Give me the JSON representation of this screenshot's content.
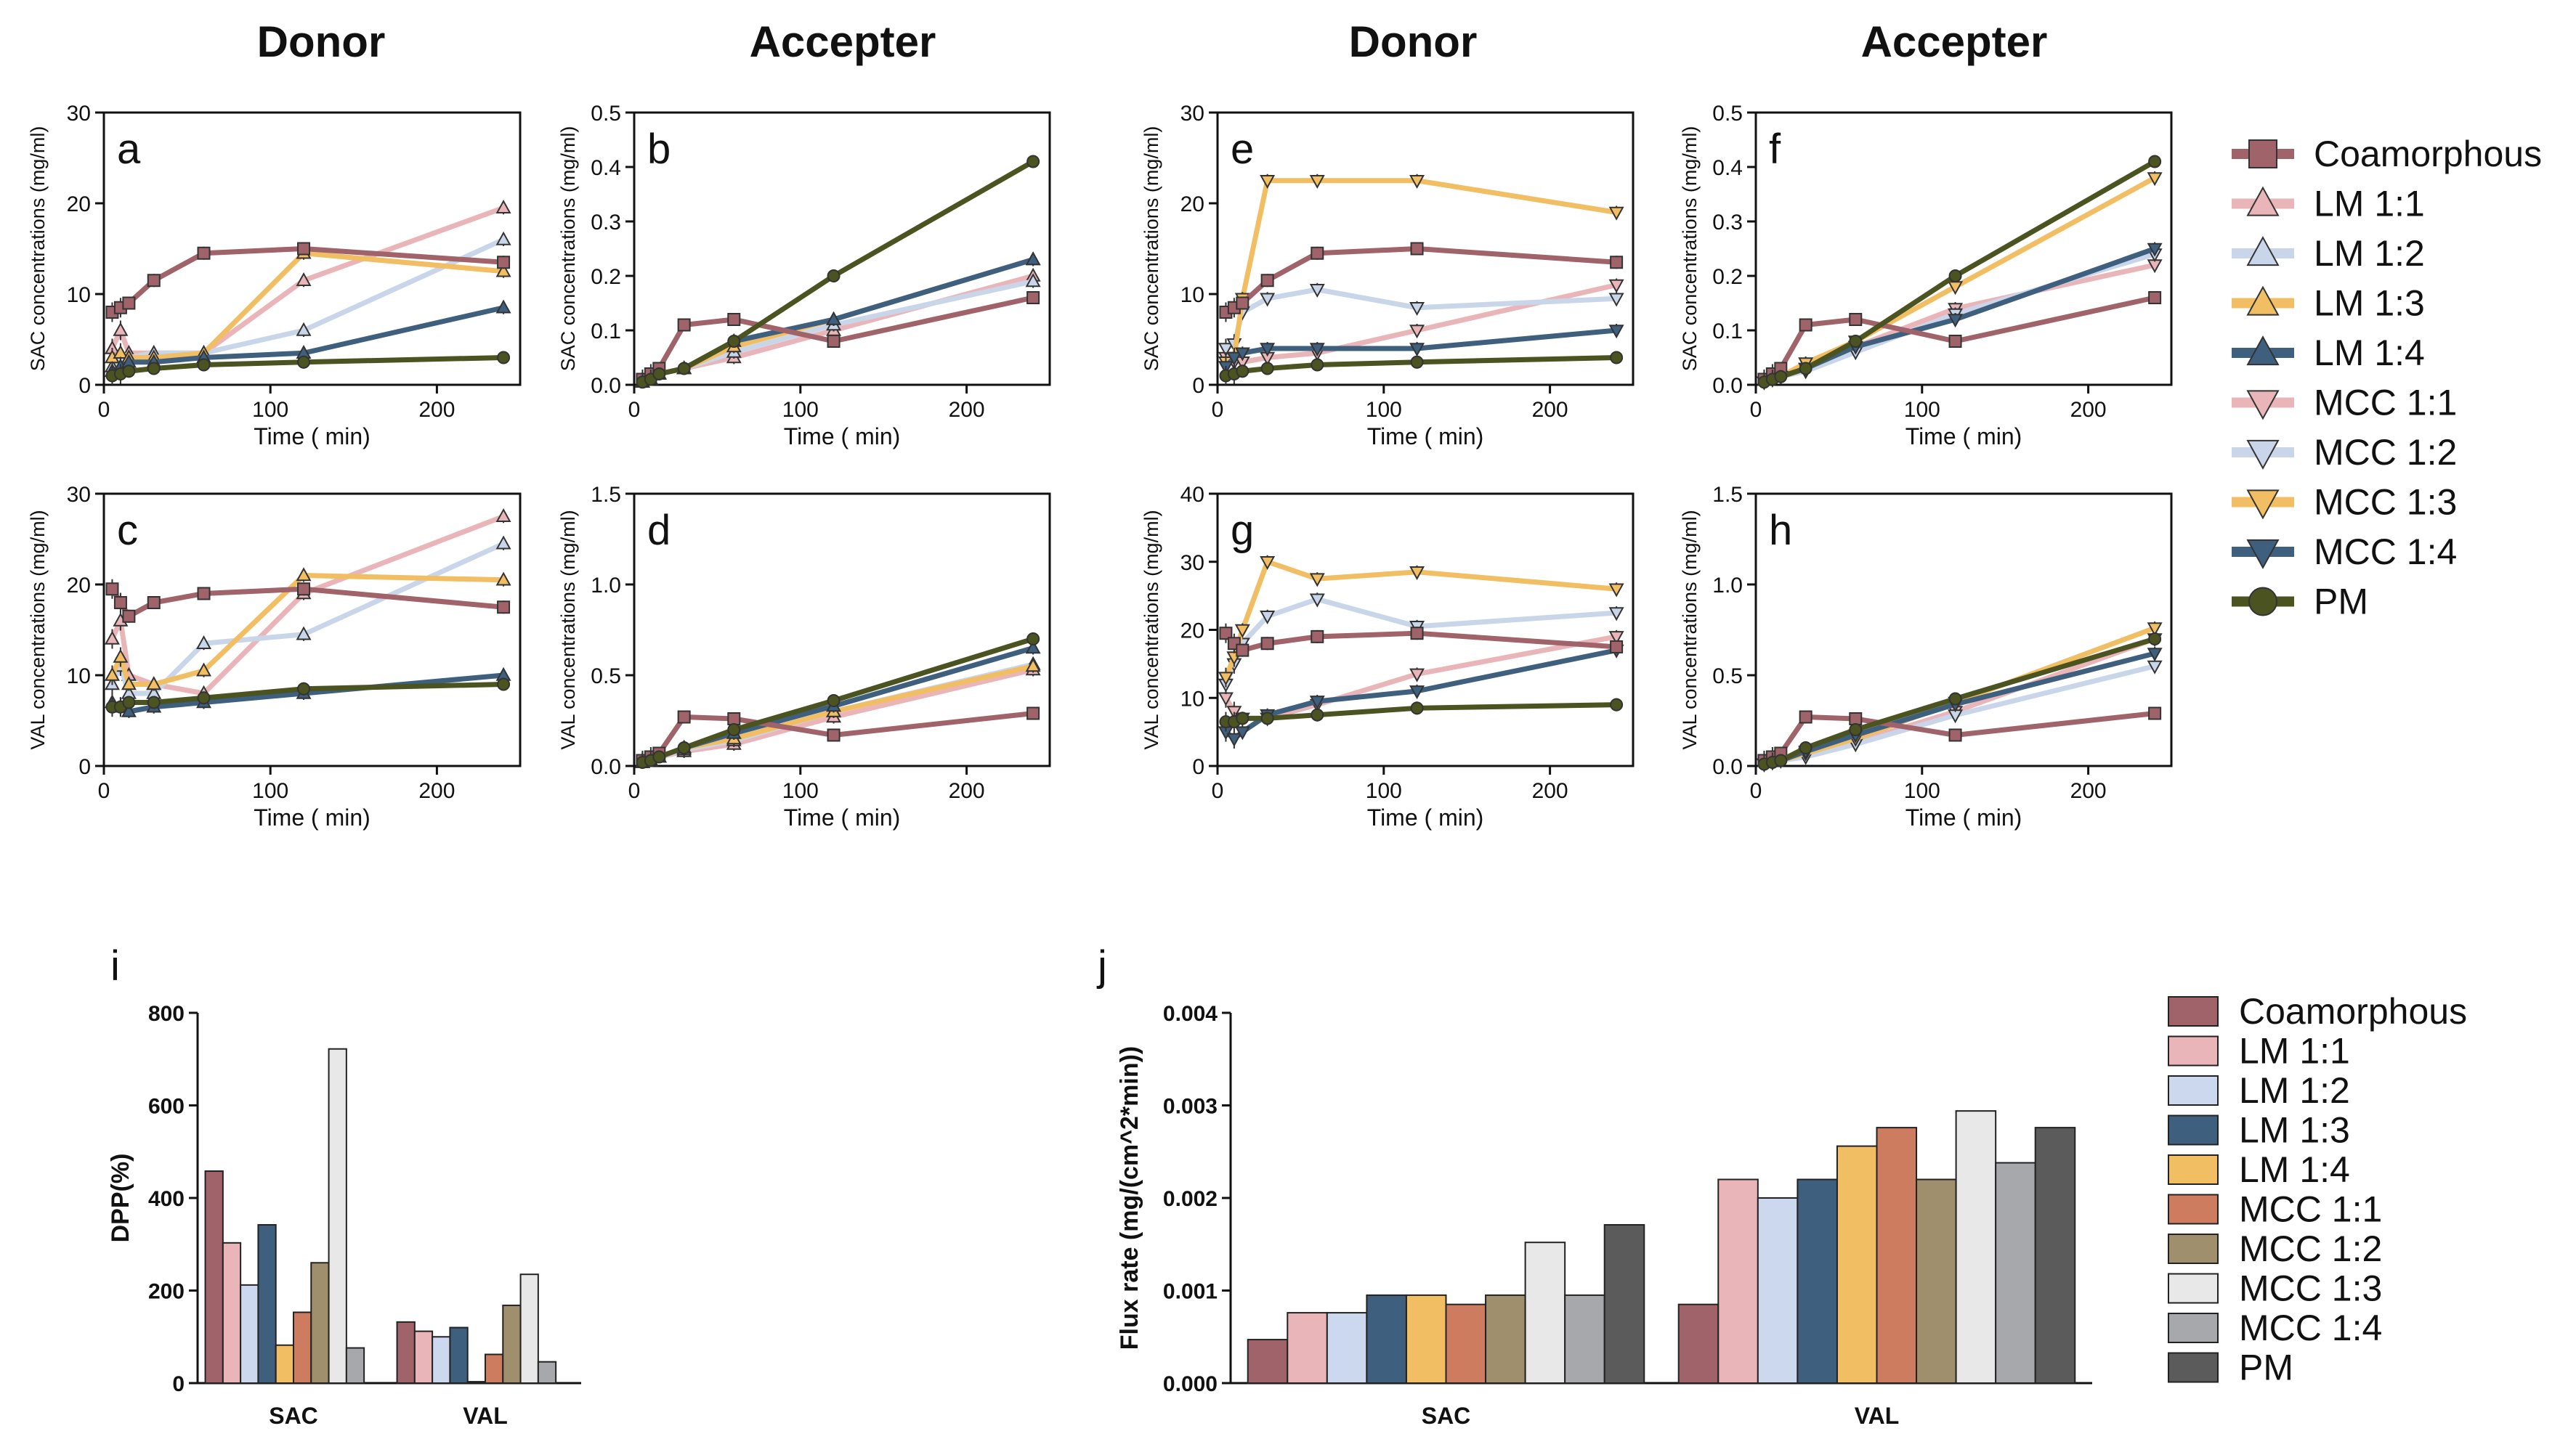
{
  "headers": {
    "donor": "Donor",
    "accepter": "Accepter"
  },
  "colors": {
    "Coamorphous": "#a0636a",
    "LM 1:1": "#eab5b8",
    "LM 1:2": "#c9d6ea",
    "LM 1:3": "#f2be63",
    "LM 1:4": "#3e5f7e",
    "MCC 1:1": "#eab5b8",
    "MCC 1:2": "#c9d6ea",
    "MCC 1:3": "#f2be63",
    "MCC 1:4": "#3e5f7e",
    "PM": "#4b5320"
  },
  "bar_colors": {
    "Coamorphous": "#a0636a",
    "LM 1:1": "#eab5b8",
    "LM 1:2": "#cbd8ee",
    "LM 1:3": "#3e5f7e",
    "LM 1:4": "#f2be63",
    "MCC 1:1": "#cd7c60",
    "MCC 1:2": "#a08f6c",
    "MCC 1:3": "#e8e8e8",
    "MCC 1:4": "#a7a8ac",
    "PM": "#5b5b5b"
  },
  "line_legend": {
    "labels": [
      "Coamorphous",
      "LM 1:1",
      "LM 1:2",
      "LM 1:3",
      "LM 1:4",
      "MCC 1:1",
      "MCC 1:2",
      "MCC 1:3",
      "MCC 1:4",
      "PM"
    ],
    "markers": [
      "square",
      "tri-up",
      "tri-up",
      "tri-up",
      "tri-up",
      "tri-down",
      "tri-down",
      "tri-down",
      "tri-down",
      "circle"
    ]
  },
  "bar_legend": {
    "labels": [
      "Coamorphous",
      "LM 1:1",
      "LM 1:2",
      "LM 1:3",
      "LM 1:4",
      "MCC 1:1",
      "MCC 1:2",
      "MCC 1:3",
      "MCC 1:4",
      "PM"
    ]
  },
  "chart_data": [
    {
      "panel": "a",
      "type": "line",
      "xlabel": "Time ( min)",
      "ylabel": "SAC concentrations (mg/ml)",
      "xlim": [
        0,
        250
      ],
      "ylim": [
        0,
        30
      ],
      "xticks": [
        0,
        100,
        200
      ],
      "yticks": [
        0,
        10,
        20,
        30
      ],
      "x": [
        5,
        10,
        15,
        30,
        60,
        120,
        240
      ],
      "series": [
        {
          "name": "Coamorphous",
          "marker": "square",
          "values": [
            8,
            8.5,
            9,
            11.5,
            14.5,
            15,
            13.5
          ]
        },
        {
          "name": "LM 1:1",
          "marker": "tri-up",
          "values": [
            4,
            6,
            3.5,
            3.5,
            3.5,
            11.5,
            19.5
          ]
        },
        {
          "name": "LM 1:2",
          "marker": "tri-up",
          "values": [
            2,
            3,
            3,
            3.5,
            3.5,
            6,
            16
          ]
        },
        {
          "name": "LM 1:3",
          "marker": "tri-up",
          "values": [
            3,
            3.5,
            3,
            3,
            3.5,
            14.5,
            12.5
          ]
        },
        {
          "name": "LM 1:4",
          "marker": "tri-up",
          "values": [
            1.5,
            2,
            2.5,
            2.5,
            3,
            3.5,
            8.5
          ]
        },
        {
          "name": "PM",
          "marker": "circle",
          "values": [
            1,
            1.2,
            1.5,
            1.8,
            2.2,
            2.5,
            3
          ]
        }
      ]
    },
    {
      "panel": "b",
      "type": "line",
      "xlabel": "Time ( min)",
      "ylabel": "SAC concentrations (mg/ml)",
      "xlim": [
        0,
        250
      ],
      "ylim": [
        0,
        0.5
      ],
      "xticks": [
        0,
        100,
        200
      ],
      "yticks": [
        0.0,
        0.1,
        0.2,
        0.3,
        0.4,
        0.5
      ],
      "x": [
        5,
        10,
        15,
        30,
        60,
        120,
        240
      ],
      "series": [
        {
          "name": "Coamorphous",
          "marker": "square",
          "values": [
            0.01,
            0.02,
            0.03,
            0.11,
            0.12,
            0.08,
            0.16
          ]
        },
        {
          "name": "LM 1:1",
          "marker": "tri-up",
          "values": [
            0.005,
            0.01,
            0.02,
            0.03,
            0.05,
            0.1,
            0.2
          ]
        },
        {
          "name": "LM 1:2",
          "marker": "tri-up",
          "values": [
            0.005,
            0.01,
            0.02,
            0.03,
            0.06,
            0.11,
            0.19
          ]
        },
        {
          "name": "LM 1:3",
          "marker": "tri-up",
          "values": [
            0.005,
            0.01,
            0.02,
            0.03,
            0.07,
            0.12,
            0.23
          ]
        },
        {
          "name": "LM 1:4",
          "marker": "tri-up",
          "values": [
            0.005,
            0.01,
            0.02,
            0.03,
            0.08,
            0.12,
            0.23
          ]
        },
        {
          "name": "PM",
          "marker": "circle",
          "values": [
            0.005,
            0.01,
            0.02,
            0.03,
            0.08,
            0.2,
            0.41
          ]
        }
      ]
    },
    {
      "panel": "c",
      "type": "line",
      "xlabel": "Time ( min)",
      "ylabel": "VAL concentrations (mg/ml)",
      "xlim": [
        0,
        250
      ],
      "ylim": [
        0,
        30
      ],
      "xticks": [
        0,
        100,
        200
      ],
      "yticks": [
        0,
        10,
        20,
        30
      ],
      "x": [
        5,
        10,
        15,
        30,
        60,
        120,
        240
      ],
      "series": [
        {
          "name": "Coamorphous",
          "marker": "square",
          "values": [
            19.5,
            18,
            16.5,
            18,
            19,
            19.5,
            17.5
          ]
        },
        {
          "name": "LM 1:1",
          "marker": "tri-up",
          "values": [
            14,
            16,
            10,
            9,
            8,
            19,
            27.5
          ]
        },
        {
          "name": "LM 1:2",
          "marker": "tri-up",
          "values": [
            9,
            11,
            8,
            8,
            13.5,
            14.5,
            24.5
          ]
        },
        {
          "name": "LM 1:3",
          "marker": "tri-up",
          "values": [
            10,
            12,
            9,
            9,
            10.5,
            21,
            20.5
          ]
        },
        {
          "name": "LM 1:4",
          "marker": "tri-up",
          "values": [
            7,
            6.5,
            6,
            6.5,
            7,
            8,
            10
          ]
        },
        {
          "name": "PM",
          "marker": "circle",
          "values": [
            6.5,
            6.5,
            7,
            7,
            7.5,
            8.5,
            9
          ]
        }
      ]
    },
    {
      "panel": "d",
      "type": "line",
      "xlabel": "Time ( min)",
      "ylabel": "VAL concentrations (mg/ml)",
      "xlim": [
        0,
        250
      ],
      "ylim": [
        0,
        1.5
      ],
      "xticks": [
        0,
        100,
        200
      ],
      "yticks": [
        0.0,
        0.5,
        1.0,
        1.5
      ],
      "x": [
        5,
        10,
        15,
        30,
        60,
        120,
        240
      ],
      "series": [
        {
          "name": "Coamorphous",
          "marker": "square",
          "values": [
            0.03,
            0.05,
            0.07,
            0.27,
            0.26,
            0.17,
            0.29
          ]
        },
        {
          "name": "LM 1:1",
          "marker": "tri-up",
          "values": [
            0.02,
            0.03,
            0.05,
            0.08,
            0.12,
            0.27,
            0.53
          ]
        },
        {
          "name": "LM 1:2",
          "marker": "tri-up",
          "values": [
            0.02,
            0.03,
            0.05,
            0.09,
            0.14,
            0.3,
            0.56
          ]
        },
        {
          "name": "LM 1:3",
          "marker": "tri-up",
          "values": [
            0.02,
            0.03,
            0.05,
            0.1,
            0.15,
            0.3,
            0.55
          ]
        },
        {
          "name": "LM 1:4",
          "marker": "tri-up",
          "values": [
            0.02,
            0.03,
            0.05,
            0.1,
            0.18,
            0.33,
            0.65
          ]
        },
        {
          "name": "PM",
          "marker": "circle",
          "values": [
            0.02,
            0.03,
            0.05,
            0.1,
            0.2,
            0.36,
            0.7
          ]
        }
      ]
    },
    {
      "panel": "e",
      "type": "line",
      "xlabel": "Time ( min)",
      "ylabel": "SAC concentrations (mg/ml)",
      "xlim": [
        0,
        250
      ],
      "ylim": [
        0,
        30
      ],
      "xticks": [
        0,
        100,
        200
      ],
      "yticks": [
        0,
        10,
        20,
        30
      ],
      "x": [
        5,
        10,
        15,
        30,
        60,
        120,
        240
      ],
      "series": [
        {
          "name": "Coamorphous",
          "marker": "square",
          "values": [
            8,
            8.5,
            9,
            11.5,
            14.5,
            15,
            13.5
          ]
        },
        {
          "name": "MCC 1:1",
          "marker": "tri-down",
          "values": [
            3,
            2.5,
            2.5,
            3,
            3.5,
            6,
            11
          ]
        },
        {
          "name": "MCC 1:2",
          "marker": "tri-down",
          "values": [
            4,
            4.5,
            8,
            9.5,
            10.5,
            8.5,
            9.5
          ]
        },
        {
          "name": "MCC 1:3",
          "marker": "tri-down",
          "values": [
            2.5,
            3,
            9.5,
            22.5,
            22.5,
            22.5,
            19
          ]
        },
        {
          "name": "MCC 1:4",
          "marker": "tri-down",
          "values": [
            2,
            3,
            3.5,
            4,
            4,
            4,
            6
          ]
        },
        {
          "name": "PM",
          "marker": "circle",
          "values": [
            1,
            1.2,
            1.5,
            1.8,
            2.2,
            2.5,
            3
          ]
        }
      ]
    },
    {
      "panel": "f",
      "type": "line",
      "xlabel": "Time ( min)",
      "ylabel": "SAC concentrations (mg/ml)",
      "xlim": [
        0,
        250
      ],
      "ylim": [
        0,
        0.5
      ],
      "xticks": [
        0,
        100,
        200
      ],
      "yticks": [
        0.0,
        0.1,
        0.2,
        0.3,
        0.4,
        0.5
      ],
      "x": [
        5,
        10,
        15,
        30,
        60,
        120,
        240
      ],
      "series": [
        {
          "name": "Coamorphous",
          "marker": "square",
          "values": [
            0.01,
            0.02,
            0.03,
            0.11,
            0.12,
            0.08,
            0.16
          ]
        },
        {
          "name": "MCC 1:1",
          "marker": "tri-down",
          "values": [
            0.005,
            0.01,
            0.015,
            0.03,
            0.07,
            0.14,
            0.22
          ]
        },
        {
          "name": "MCC 1:2",
          "marker": "tri-down",
          "values": [
            0.005,
            0.01,
            0.015,
            0.025,
            0.06,
            0.13,
            0.24
          ]
        },
        {
          "name": "MCC 1:3",
          "marker": "tri-down",
          "values": [
            0.005,
            0.01,
            0.015,
            0.04,
            0.08,
            0.18,
            0.38
          ]
        },
        {
          "name": "MCC 1:4",
          "marker": "tri-down",
          "values": [
            0.005,
            0.01,
            0.015,
            0.03,
            0.07,
            0.12,
            0.25
          ]
        },
        {
          "name": "PM",
          "marker": "circle",
          "values": [
            0.005,
            0.01,
            0.015,
            0.03,
            0.08,
            0.2,
            0.41
          ]
        }
      ]
    },
    {
      "panel": "g",
      "type": "line",
      "xlabel": "Time ( min)",
      "ylabel": "VAL concentrations (mg/ml)",
      "xlim": [
        0,
        250
      ],
      "ylim": [
        0,
        40
      ],
      "xticks": [
        0,
        100,
        200
      ],
      "yticks": [
        0,
        10,
        20,
        30,
        40
      ],
      "x": [
        5,
        10,
        15,
        30,
        60,
        120,
        240
      ],
      "series": [
        {
          "name": "Coamorphous",
          "marker": "square",
          "values": [
            19.5,
            18,
            17,
            18,
            19,
            19.5,
            17.5
          ]
        },
        {
          "name": "MCC 1:1",
          "marker": "tri-down",
          "values": [
            10,
            8,
            7,
            7,
            9,
            13.5,
            19
          ]
        },
        {
          "name": "MCC 1:2",
          "marker": "tri-down",
          "values": [
            12,
            15,
            18,
            22,
            24.5,
            20.5,
            22.5
          ]
        },
        {
          "name": "MCC 1:3",
          "marker": "tri-down",
          "values": [
            13,
            16,
            20,
            30,
            27.5,
            28.5,
            26
          ]
        },
        {
          "name": "MCC 1:4",
          "marker": "tri-down",
          "values": [
            5,
            4,
            5,
            7.5,
            9.5,
            11,
            17
          ]
        },
        {
          "name": "PM",
          "marker": "circle",
          "values": [
            6.5,
            6.5,
            7,
            7,
            7.5,
            8.5,
            9
          ]
        }
      ]
    },
    {
      "panel": "h",
      "type": "line",
      "xlabel": "Time ( min)",
      "ylabel": "VAL concentrations (mg/ml)",
      "xlim": [
        0,
        250
      ],
      "ylim": [
        0,
        1.5
      ],
      "xticks": [
        0,
        100,
        200
      ],
      "yticks": [
        0.0,
        0.5,
        1.0,
        1.5
      ],
      "x": [
        5,
        10,
        15,
        30,
        60,
        120,
        240
      ],
      "series": [
        {
          "name": "Coamorphous",
          "marker": "square",
          "values": [
            0.03,
            0.05,
            0.07,
            0.27,
            0.26,
            0.17,
            0.29
          ]
        },
        {
          "name": "MCC 1:1",
          "marker": "tri-down",
          "values": [
            0.01,
            0.02,
            0.03,
            0.06,
            0.13,
            0.3,
            0.7
          ]
        },
        {
          "name": "MCC 1:2",
          "marker": "tri-down",
          "values": [
            0.01,
            0.02,
            0.03,
            0.05,
            0.12,
            0.28,
            0.55
          ]
        },
        {
          "name": "MCC 1:3",
          "marker": "tri-down",
          "values": [
            0.01,
            0.02,
            0.03,
            0.07,
            0.15,
            0.35,
            0.76
          ]
        },
        {
          "name": "MCC 1:4",
          "marker": "tri-down",
          "values": [
            0.01,
            0.02,
            0.03,
            0.08,
            0.17,
            0.34,
            0.62
          ]
        },
        {
          "name": "PM",
          "marker": "circle",
          "values": [
            0.01,
            0.02,
            0.03,
            0.1,
            0.2,
            0.37,
            0.7
          ]
        }
      ]
    },
    {
      "panel": "i",
      "type": "bar",
      "ylabel": "DPP(%)",
      "ylim": [
        0,
        800
      ],
      "yticks": [
        0,
        200,
        400,
        600,
        800
      ],
      "categories": [
        "SAC",
        "VAL"
      ],
      "series": [
        {
          "name": "Coamorphous",
          "values": [
            458,
            132
          ]
        },
        {
          "name": "LM 1:1",
          "values": [
            303,
            112
          ]
        },
        {
          "name": "LM 1:2",
          "values": [
            212,
            100
          ]
        },
        {
          "name": "LM 1:3",
          "values": [
            342,
            120
          ]
        },
        {
          "name": "LM 1:4",
          "values": [
            82,
            3
          ]
        },
        {
          "name": "MCC 1:1",
          "values": [
            153,
            62
          ]
        },
        {
          "name": "MCC 1:2",
          "values": [
            260,
            168
          ]
        },
        {
          "name": "MCC 1:3",
          "values": [
            722,
            235
          ]
        },
        {
          "name": "MCC 1:4",
          "values": [
            76,
            46
          ]
        }
      ]
    },
    {
      "panel": "j",
      "type": "bar",
      "ylabel": "Flux rate (mg/(cm^2*min))",
      "ylim": [
        0,
        0.004
      ],
      "yticks": [
        0.0,
        0.001,
        0.002,
        0.003,
        0.004
      ],
      "categories": [
        "SAC",
        "VAL"
      ],
      "series": [
        {
          "name": "Coamorphous",
          "values": [
            0.00047,
            0.00085
          ]
        },
        {
          "name": "LM 1:1",
          "values": [
            0.00076,
            0.0022
          ]
        },
        {
          "name": "LM 1:2",
          "values": [
            0.00076,
            0.002
          ]
        },
        {
          "name": "LM 1:3",
          "values": [
            0.00095,
            0.0022
          ]
        },
        {
          "name": "LM 1:4",
          "values": [
            0.00095,
            0.00256
          ]
        },
        {
          "name": "MCC 1:1",
          "values": [
            0.00085,
            0.00276
          ]
        },
        {
          "name": "MCC 1:2",
          "values": [
            0.00095,
            0.0022
          ]
        },
        {
          "name": "MCC 1:3",
          "values": [
            0.00152,
            0.00294
          ]
        },
        {
          "name": "MCC 1:4",
          "values": [
            0.00095,
            0.00238
          ]
        },
        {
          "name": "PM",
          "values": [
            0.00171,
            0.00276
          ]
        }
      ]
    }
  ]
}
